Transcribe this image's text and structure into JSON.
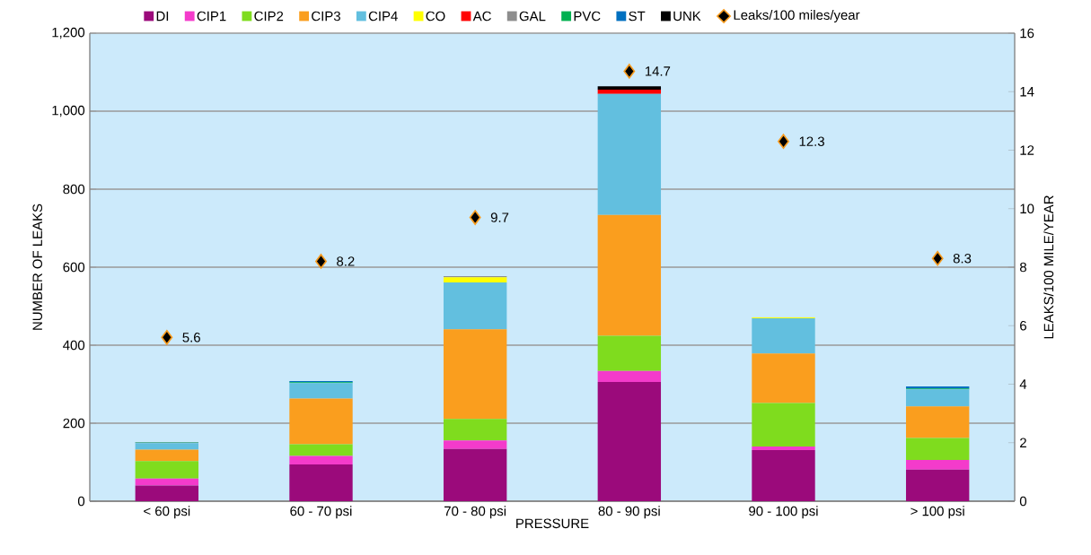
{
  "chart_data": {
    "type": "bar",
    "stacked": true,
    "xlabel": "PRESSURE",
    "ylabel": "NUMBER OF LEAKS",
    "y2label": "LEAKS/100 MILE/YEAR",
    "categories": [
      "< 60 psi",
      "60 - 70 psi",
      "70 - 80 psi",
      "80 - 90 psi",
      "90 - 100 psi",
      "> 100 psi"
    ],
    "series": [
      {
        "name": "DI",
        "color": "#9b0a7b",
        "values": [
          40,
          94,
          134,
          306,
          131,
          81
        ]
      },
      {
        "name": "CIP1",
        "color": "#f43bcb",
        "values": [
          18,
          22,
          22,
          28,
          9,
          25
        ]
      },
      {
        "name": "CIP2",
        "color": "#7fdc1e",
        "values": [
          45,
          30,
          55,
          90,
          112,
          56
        ]
      },
      {
        "name": "CIP3",
        "color": "#fa9e1e",
        "values": [
          29,
          117,
          230,
          310,
          127,
          81
        ]
      },
      {
        "name": "CIP4",
        "color": "#62bfdf",
        "values": [
          17,
          40,
          120,
          310,
          90,
          44
        ]
      },
      {
        "name": "CO",
        "color": "#ffff00",
        "values": [
          0,
          0,
          13,
          0,
          2,
          0
        ]
      },
      {
        "name": "AC",
        "color": "#ff0000",
        "values": [
          0,
          0,
          0,
          11,
          0,
          0
        ]
      },
      {
        "name": "GAL",
        "color": "#8d8d8d",
        "values": [
          1,
          0,
          3,
          0,
          0,
          0
        ]
      },
      {
        "name": "PVC",
        "color": "#00b050",
        "values": [
          1,
          2,
          0,
          0,
          0,
          2
        ]
      },
      {
        "name": "ST",
        "color": "#0070c0",
        "values": [
          1,
          3,
          0,
          0,
          0,
          5
        ]
      },
      {
        "name": "UNK",
        "color": "#000000",
        "values": [
          0,
          0,
          0,
          9,
          0,
          0
        ]
      },
      {
        "name": "Leaks/100 miles/year",
        "type": "scatter",
        "axis": "y2",
        "marker": "diamond",
        "color": "#000000",
        "values": [
          5.6,
          8.2,
          9.7,
          14.7,
          12.3,
          8.3
        ],
        "value_labels": [
          "5.6",
          "8.2",
          "9.7",
          "14.7",
          "12.3",
          "8.3"
        ]
      }
    ],
    "ylim": [
      0,
      1200
    ],
    "yticks": [
      0,
      200,
      400,
      600,
      800,
      {
        "value": 1000,
        "label": "1,000"
      },
      {
        "value": 1200,
        "label": "1,200"
      }
    ],
    "y2lim": [
      0,
      16
    ],
    "y2ticks": [
      0,
      2,
      4,
      6,
      8,
      10,
      12,
      14,
      16
    ],
    "grid": "y",
    "legend": "top"
  }
}
